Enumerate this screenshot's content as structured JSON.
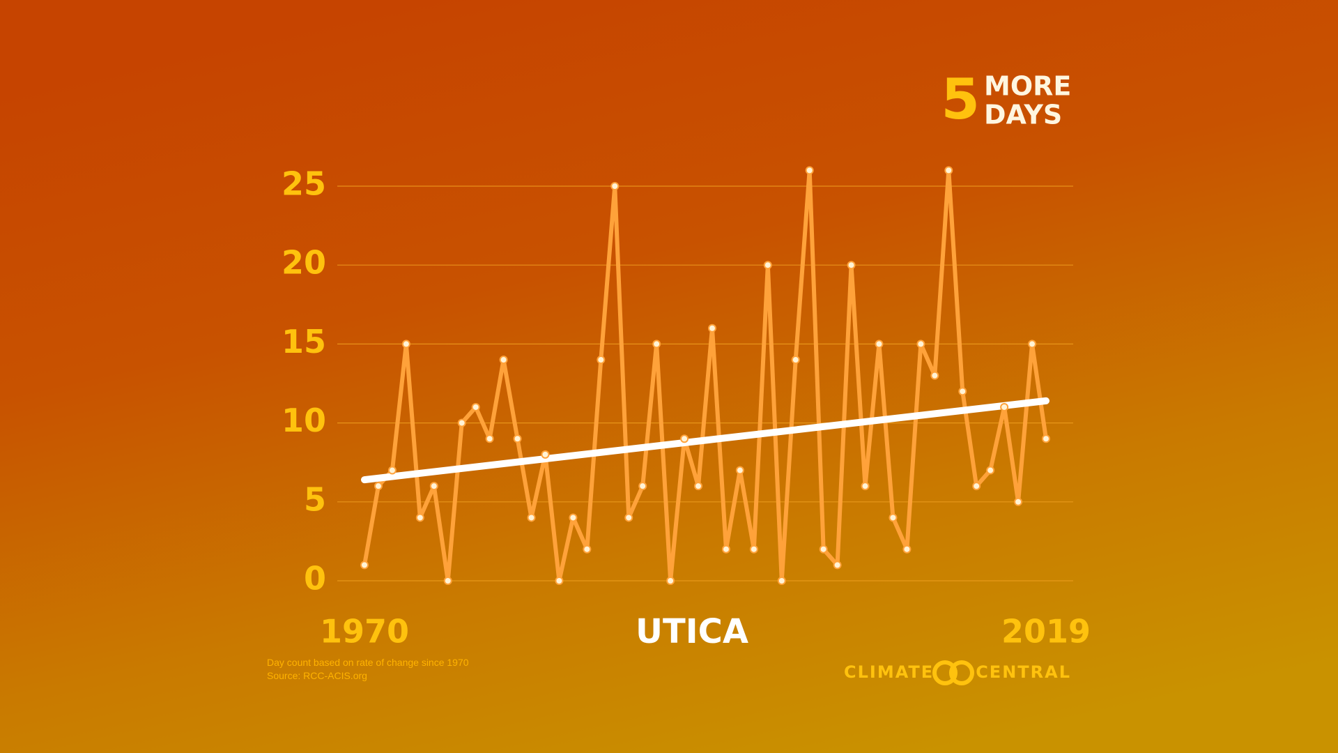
{
  "chart_data": {
    "type": "line",
    "title": "UTICA",
    "headline": {
      "number": "5",
      "line1": "MORE",
      "line2": "DAYS"
    },
    "notes": [
      "Day count based on rate of change since 1970",
      "Source: RCC-ACIS.org"
    ],
    "brand": {
      "left": "CLIMATE",
      "right": "CENTRAL"
    },
    "x": [
      1970,
      1971,
      1972,
      1973,
      1974,
      1975,
      1976,
      1977,
      1978,
      1979,
      1980,
      1981,
      1982,
      1983,
      1984,
      1985,
      1986,
      1987,
      1988,
      1989,
      1990,
      1991,
      1992,
      1993,
      1994,
      1995,
      1996,
      1997,
      1998,
      1999,
      2000,
      2001,
      2002,
      2003,
      2004,
      2005,
      2006,
      2007,
      2008,
      2009,
      2010,
      2011,
      2012,
      2013,
      2014,
      2015,
      2016,
      2017,
      2018,
      2019
    ],
    "series": [
      {
        "name": "Days",
        "color": "#ffa23a",
        "values": [
          1,
          6,
          7,
          15,
          4,
          6,
          0,
          10,
          11,
          9,
          14,
          9,
          4,
          8,
          0,
          4,
          2,
          14,
          25,
          4,
          6,
          15,
          0,
          9,
          6,
          16,
          2,
          7,
          2,
          20,
          0,
          14,
          26,
          2,
          1,
          20,
          6,
          15,
          4,
          2,
          15,
          13,
          26,
          12,
          6,
          7,
          11,
          5,
          15,
          9
        ]
      }
    ],
    "trend": [
      6.4,
      11.4
    ],
    "trend_color": "#ffffff",
    "xlim": [
      1970,
      2019
    ],
    "xticks": [
      1970,
      2019
    ],
    "ylim": [
      0,
      25
    ],
    "yticks": [
      0,
      5,
      10,
      15,
      20,
      25
    ],
    "grid": true
  }
}
